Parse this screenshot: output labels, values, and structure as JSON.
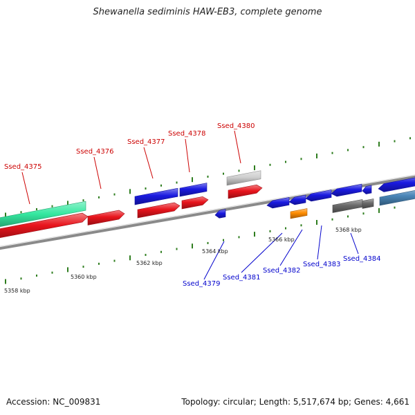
{
  "title": "Shewanella sediminis HAW-EB3, complete genome",
  "accession": "Accession: NC_009831",
  "summary": "Topology: circular; Length: 5,517,674 bp; Genes: 4,661",
  "colors": {
    "backbone": "#8a8a8a",
    "tick": "#2e7d1e",
    "forward_label": "#cc0000",
    "reverse_label": "#0000cc",
    "cds_red": "#e8141c",
    "cds_blue": "#1a1ae0",
    "teal": "#35e8a0",
    "grey": "#cfcfcf",
    "dark_grey": "#6a6a6a",
    "orange": "#ff8c00",
    "steel": "#4a86b8"
  },
  "scale_labels": [
    {
      "text": "5358 kbp"
    },
    {
      "text": "5360 kbp"
    },
    {
      "text": "5362 kbp"
    },
    {
      "text": "5364 kbp"
    },
    {
      "text": "5366 kbp"
    },
    {
      "text": "5368 kbp"
    }
  ],
  "forward_labels": [
    {
      "text": "Ssed_4375"
    },
    {
      "text": "Ssed_4376"
    },
    {
      "text": "Ssed_4377"
    },
    {
      "text": "Ssed_4378"
    },
    {
      "text": "Ssed_4380"
    }
  ],
  "reverse_labels": [
    {
      "text": "Ssed_4379"
    },
    {
      "text": "Ssed_4381"
    },
    {
      "text": "Ssed_4382"
    },
    {
      "text": "Ssed_4383"
    },
    {
      "text": "Ssed_4384"
    }
  ]
}
